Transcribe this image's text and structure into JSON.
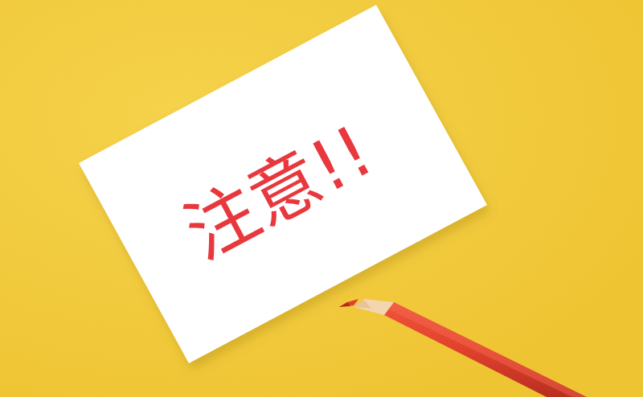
{
  "photo": {
    "card_text": "注意!!",
    "colors": {
      "background": "#f2c83a",
      "card": "#ffffff",
      "ink": "#e8383d",
      "pencil_body": "#e0412c",
      "pencil_wood": "#f3d5b0"
    }
  }
}
